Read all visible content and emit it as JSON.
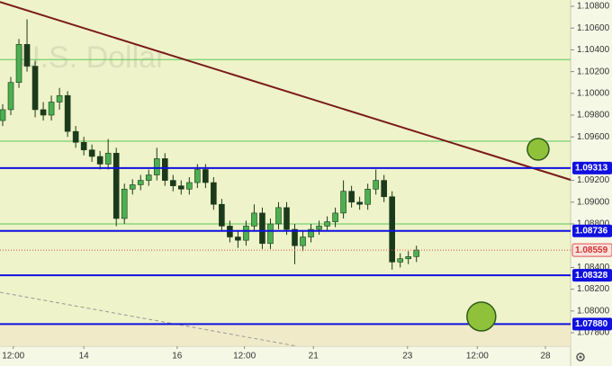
{
  "chart_data": {
    "type": "candlestick",
    "watermark": "U.S. Dollar",
    "x": [
      0,
      1,
      2,
      3,
      4,
      5,
      6,
      7,
      8,
      9,
      10,
      11,
      12,
      13,
      14,
      15,
      16,
      17,
      18,
      19,
      20,
      21,
      22,
      23,
      24,
      25,
      26,
      27,
      28,
      29,
      30,
      31,
      32,
      33,
      34,
      35,
      36,
      37,
      38,
      39,
      40,
      41,
      42,
      43,
      44,
      45,
      46,
      47,
      48,
      49,
      50,
      51
    ],
    "open": [
      1.0975,
      1.0985,
      1.101,
      1.1045,
      1.1025,
      1.0985,
      1.098,
      1.0992,
      1.0998,
      1.0965,
      1.0955,
      1.0948,
      1.0942,
      1.0935,
      1.0945,
      1.0885,
      1.0912,
      1.0916,
      1.092,
      1.0925,
      1.094,
      1.092,
      1.0915,
      1.0912,
      1.0918,
      1.093,
      1.0918,
      1.0898,
      1.0878,
      1.0868,
      1.0865,
      1.0878,
      1.089,
      1.0862,
      1.088,
      1.0895,
      1.0875,
      1.086,
      1.0868,
      1.0875,
      1.0878,
      1.0882,
      1.089,
      1.091,
      1.09,
      1.0898,
      1.0912,
      1.092,
      1.0905,
      1.0845,
      1.0848,
      1.085
    ],
    "high": [
      1.099,
      1.1015,
      1.105,
      1.1068,
      1.103,
      1.0992,
      1.0998,
      1.1005,
      1.1002,
      1.097,
      1.096,
      1.0953,
      1.0947,
      1.0958,
      1.095,
      1.0917,
      1.0921,
      1.0925,
      1.093,
      1.095,
      1.0945,
      1.0925,
      1.092,
      1.0923,
      1.0935,
      1.0935,
      1.0923,
      1.0903,
      1.0883,
      1.0873,
      1.0883,
      1.0898,
      1.0895,
      1.0885,
      1.09,
      1.09,
      1.088,
      1.0873,
      1.088,
      1.0883,
      1.0887,
      1.0895,
      1.092,
      1.0915,
      1.0905,
      1.0917,
      1.093,
      1.0925,
      1.091,
      1.0853,
      1.0855,
      1.086
    ],
    "low": [
      1.097,
      1.098,
      1.1005,
      1.102,
      1.0978,
      1.0975,
      1.0975,
      1.0985,
      1.096,
      1.095,
      1.0943,
      1.0937,
      1.093,
      1.093,
      1.0878,
      1.088,
      1.0907,
      1.0911,
      1.0915,
      1.092,
      1.0915,
      1.091,
      1.0907,
      1.0907,
      1.0913,
      1.0913,
      1.0893,
      1.0873,
      1.0863,
      1.0858,
      1.086,
      1.0873,
      1.0857,
      1.0857,
      1.0875,
      1.087,
      1.0843,
      1.0855,
      1.0863,
      1.087,
      1.0873,
      1.0877,
      1.0885,
      1.0895,
      1.0893,
      1.0893,
      1.0907,
      1.09,
      1.0838,
      1.084,
      1.0843,
      1.0845
    ],
    "close": [
      1.0985,
      1.101,
      1.1045,
      1.1025,
      1.0985,
      1.098,
      1.0992,
      1.0998,
      1.0965,
      1.0955,
      1.0948,
      1.0942,
      1.0935,
      1.0945,
      1.0885,
      1.0912,
      1.0916,
      1.092,
      1.0925,
      1.094,
      1.092,
      1.0915,
      1.0912,
      1.0918,
      1.093,
      1.0918,
      1.0898,
      1.0878,
      1.0868,
      1.0865,
      1.0878,
      1.089,
      1.0862,
      1.088,
      1.0895,
      1.0875,
      1.086,
      1.0868,
      1.0875,
      1.0878,
      1.0882,
      1.089,
      1.091,
      1.09,
      1.0898,
      1.0912,
      1.092,
      1.0905,
      1.0845,
      1.0848,
      1.085,
      1.0856
    ],
    "up_color": "#4caf50",
    "down_color": "#1b3a1b",
    "xlim": [
      0,
      70
    ],
    "xticks": [
      {
        "value": 1.3,
        "label": "12:00"
      },
      {
        "value": 10,
        "label": "14"
      },
      {
        "value": 21.5,
        "label": "16"
      },
      {
        "value": 29.8,
        "label": "12:00"
      },
      {
        "value": 38.3,
        "label": "21"
      },
      {
        "value": 49.9,
        "label": "23"
      },
      {
        "value": 58.5,
        "label": "12:00"
      },
      {
        "value": 66.9,
        "label": "28"
      }
    ],
    "ylim": [
      1.07676,
      1.10858
    ],
    "yticks": [
      {
        "value": 1.108,
        "label": "1.10800"
      },
      {
        "value": 1.106,
        "label": "1.10600"
      },
      {
        "value": 1.104,
        "label": "1.10400"
      },
      {
        "value": 1.102,
        "label": "1.10200"
      },
      {
        "value": 1.1,
        "label": "1.10000"
      },
      {
        "value": 1.098,
        "label": "1.09800"
      },
      {
        "value": 1.096,
        "label": "1.09600"
      },
      {
        "value": 1.092,
        "label": "1.09200"
      },
      {
        "value": 1.09,
        "label": "1.09000"
      },
      {
        "value": 1.088,
        "label": "1.08800"
      },
      {
        "value": 1.084,
        "label": "1.08400"
      },
      {
        "value": 1.082,
        "label": "1.08200"
      },
      {
        "value": 1.08,
        "label": "1.08000"
      },
      {
        "value": 1.078,
        "label": "1.07800"
      }
    ],
    "levels": [
      {
        "value": 1.09313,
        "label": "1.09313"
      },
      {
        "value": 1.08736,
        "label": "1.08736"
      },
      {
        "value": 1.08328,
        "label": "1.08328"
      },
      {
        "value": 1.0788,
        "label": "1.07880"
      }
    ],
    "level_color": "#1010e0",
    "green_levels": [
      1.1031,
      1.0956,
      1.088
    ],
    "green_color": "#5cc85c",
    "current_price": {
      "value": 1.08559,
      "label": "1.08559"
    },
    "trendline": {
      "x": [
        0,
        70
      ],
      "y": [
        1.1084,
        1.09205
      ],
      "color": "#7a1a1a"
    },
    "dashed_line": {
      "x": [
        0,
        36
      ],
      "y": [
        1.08172,
        1.0768
      ],
      "color": "#999999"
    },
    "markers": [
      {
        "x": 66,
        "y": 1.09486,
        "r": 12
      },
      {
        "x": 59,
        "y": 1.07949,
        "r": 16
      }
    ],
    "marker_color": "#8fc23a"
  }
}
